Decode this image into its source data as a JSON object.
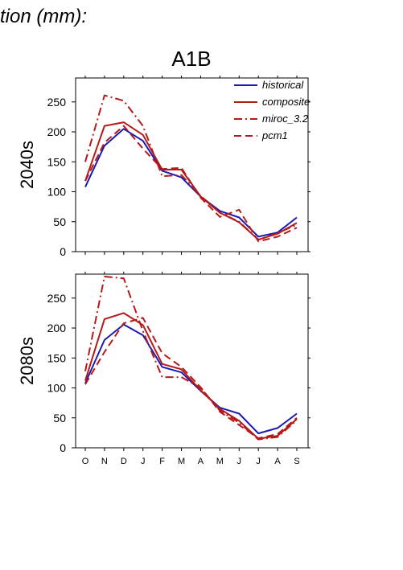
{
  "header_text": "tion (mm):",
  "chart_data": [
    {
      "type": "line",
      "title": "A1B",
      "ylabel": "2040s",
      "xlabel": "",
      "categories": [
        "O",
        "N",
        "D",
        "J",
        "F",
        "M",
        "A",
        "M",
        "J",
        "J",
        "A",
        "S"
      ],
      "ylim": [
        0,
        290
      ],
      "yticks": [
        0,
        50,
        100,
        150,
        200,
        250
      ],
      "legend_position": "top-right",
      "series": [
        {
          "name": "historical",
          "color": "#1a1ab4",
          "style": "solid",
          "values": [
            108,
            177,
            205,
            185,
            135,
            124,
            92,
            68,
            57,
            25,
            32,
            57
          ]
        },
        {
          "name": "composite",
          "color": "#b41a1a",
          "style": "solid",
          "values": [
            118,
            210,
            216,
            195,
            137,
            137,
            92,
            65,
            49,
            20,
            30,
            48
          ]
        },
        {
          "name": "miroc_3.2",
          "color": "#b41a1a",
          "style": "dashdot",
          "values": [
            150,
            261,
            252,
            210,
            126,
            128,
            93,
            65,
            50,
            20,
            31,
            45
          ]
        },
        {
          "name": "pcm1",
          "color": "#b41a1a",
          "style": "dashed",
          "values": [
            118,
            182,
            210,
            172,
            138,
            140,
            90,
            58,
            70,
            17,
            25,
            40
          ]
        }
      ]
    },
    {
      "type": "line",
      "title": "",
      "ylabel": "2080s",
      "xlabel": "",
      "categories": [
        "O",
        "N",
        "D",
        "J",
        "F",
        "M",
        "A",
        "M",
        "J",
        "J",
        "A",
        "S"
      ],
      "ylim": [
        0,
        290
      ],
      "yticks": [
        0,
        50,
        100,
        150,
        200,
        250
      ],
      "series": [
        {
          "color": "#1a1ab4",
          "style": "solid",
          "values": [
            108,
            180,
            206,
            188,
            135,
            126,
            95,
            67,
            57,
            24,
            33,
            57
          ]
        },
        {
          "color": "#b41a1a",
          "style": "solid",
          "values": [
            112,
            215,
            225,
            205,
            140,
            131,
            96,
            65,
            45,
            15,
            20,
            48
          ]
        },
        {
          "color": "#b41a1a",
          "style": "dashdot",
          "values": [
            128,
            286,
            283,
            195,
            118,
            118,
            100,
            62,
            42,
            14,
            18,
            46
          ]
        },
        {
          "color": "#b41a1a",
          "style": "dashed",
          "values": [
            106,
            160,
            208,
            217,
            158,
            135,
            101,
            60,
            38,
            16,
            23,
            50
          ]
        }
      ]
    }
  ]
}
